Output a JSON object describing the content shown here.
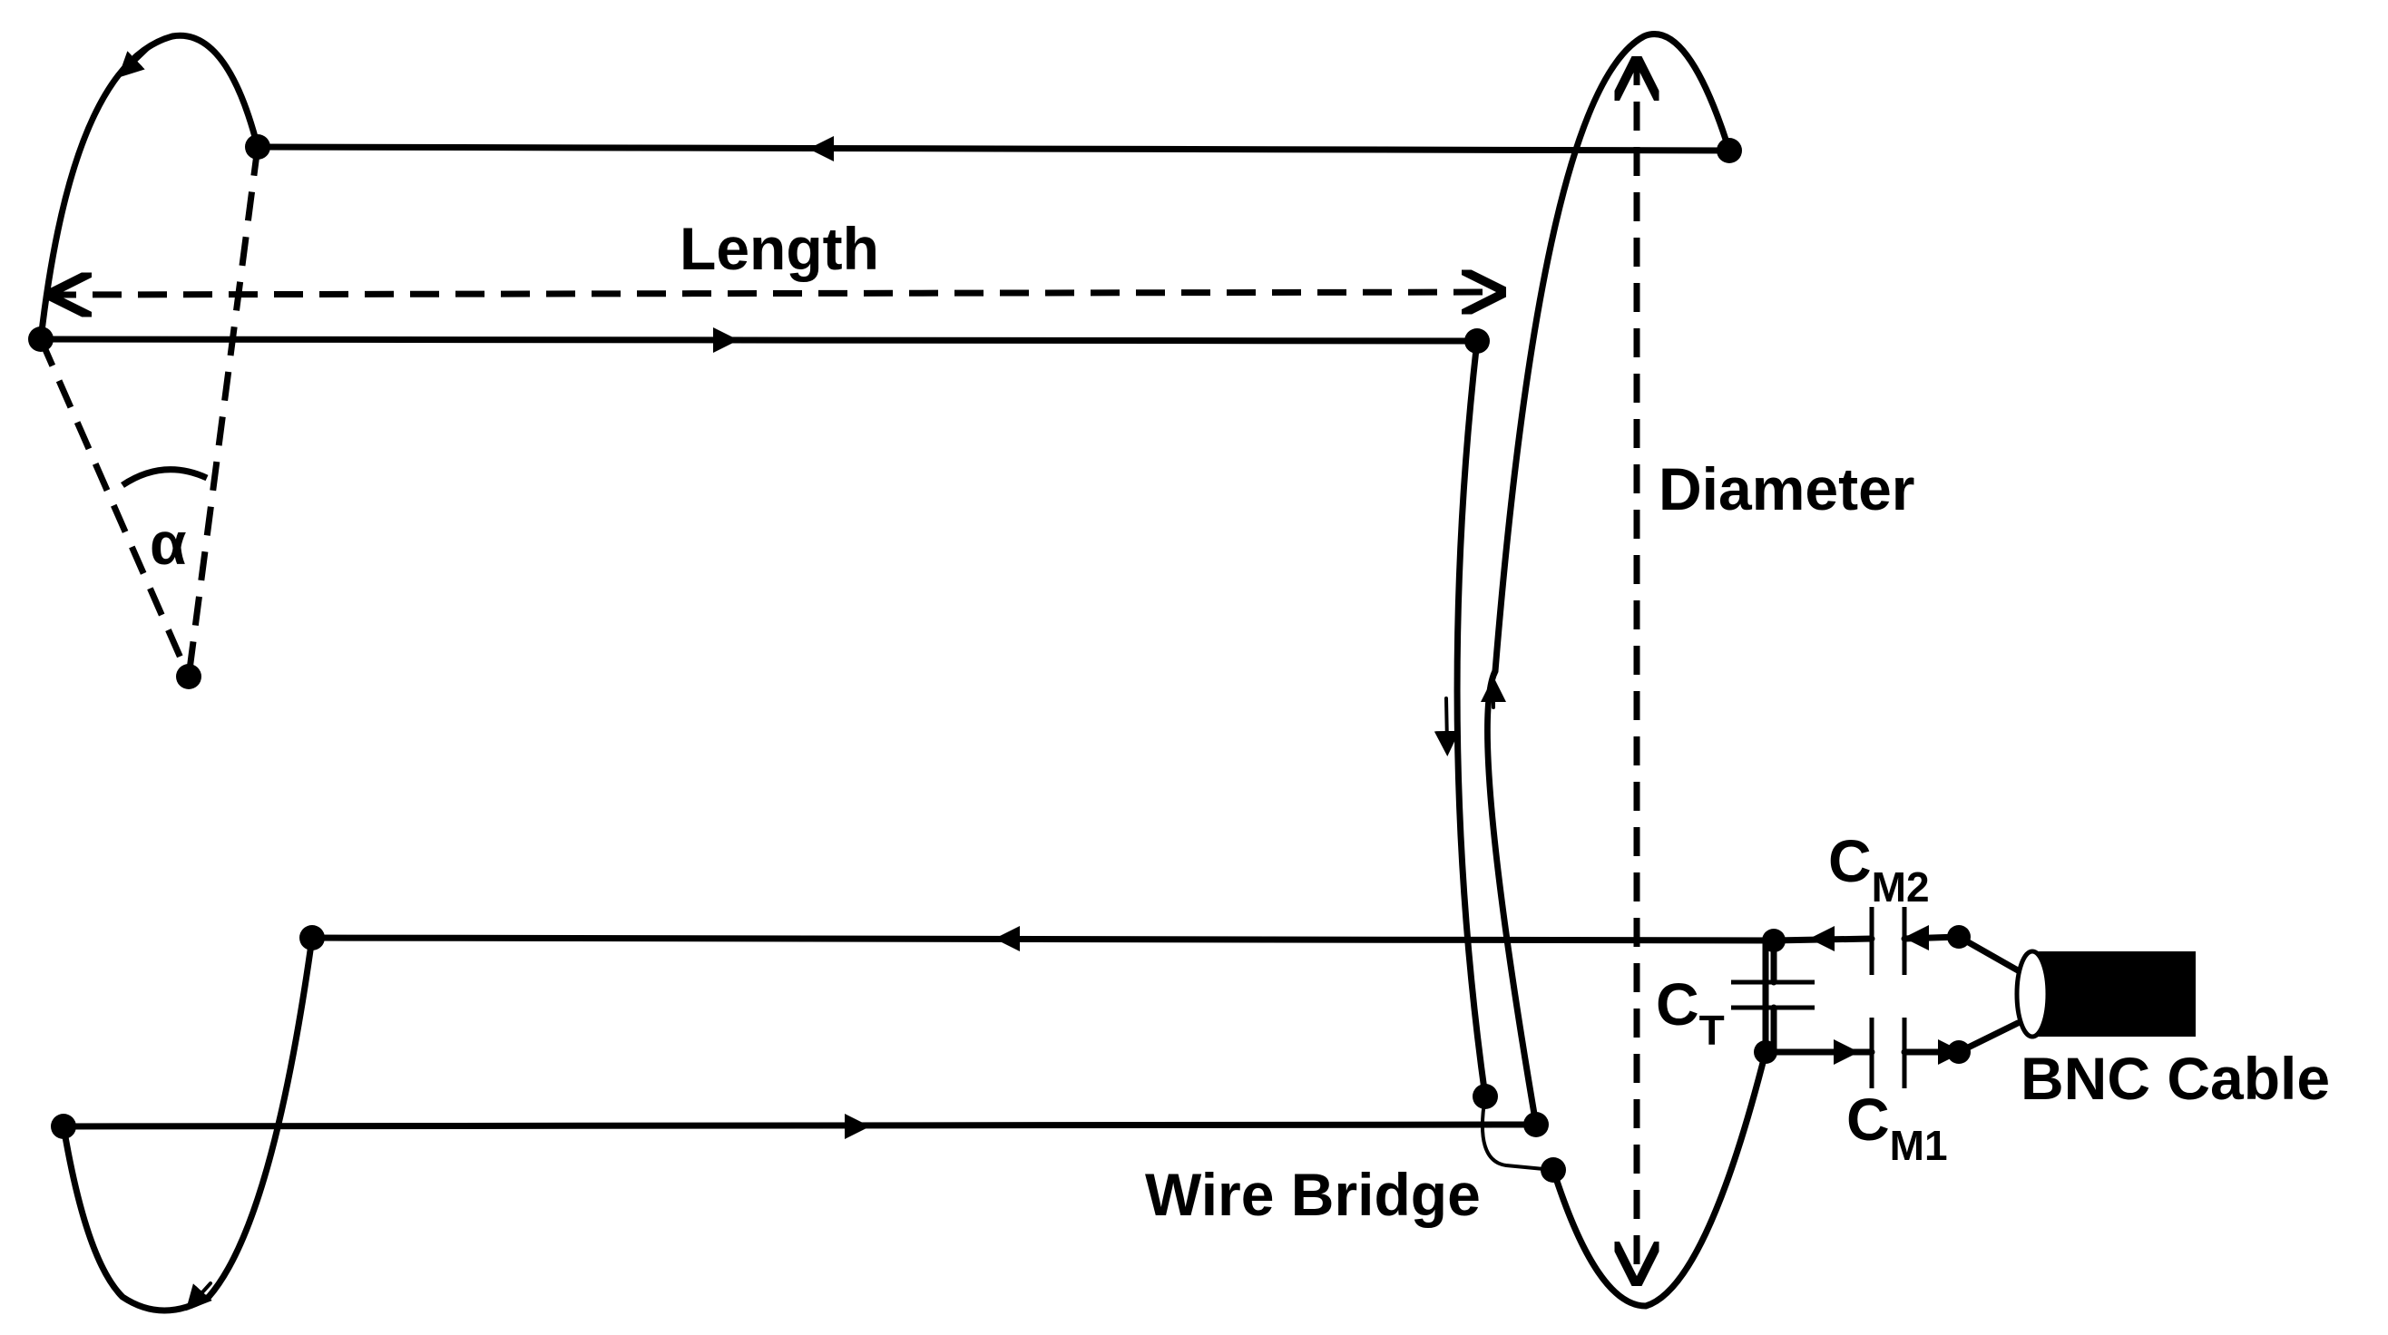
{
  "labels": {
    "length": "Length",
    "diameter": "Diameter",
    "alpha": "α",
    "wire_bridge": "Wire Bridge",
    "bnc_cable": "BNC Cable",
    "c_t": {
      "main": "C",
      "sub": "T"
    },
    "c_m1": {
      "main": "C",
      "sub": "M1"
    },
    "c_m2": {
      "main": "C",
      "sub": "M2"
    }
  },
  "colors": {
    "line": "#000000",
    "background": "#ffffff"
  }
}
